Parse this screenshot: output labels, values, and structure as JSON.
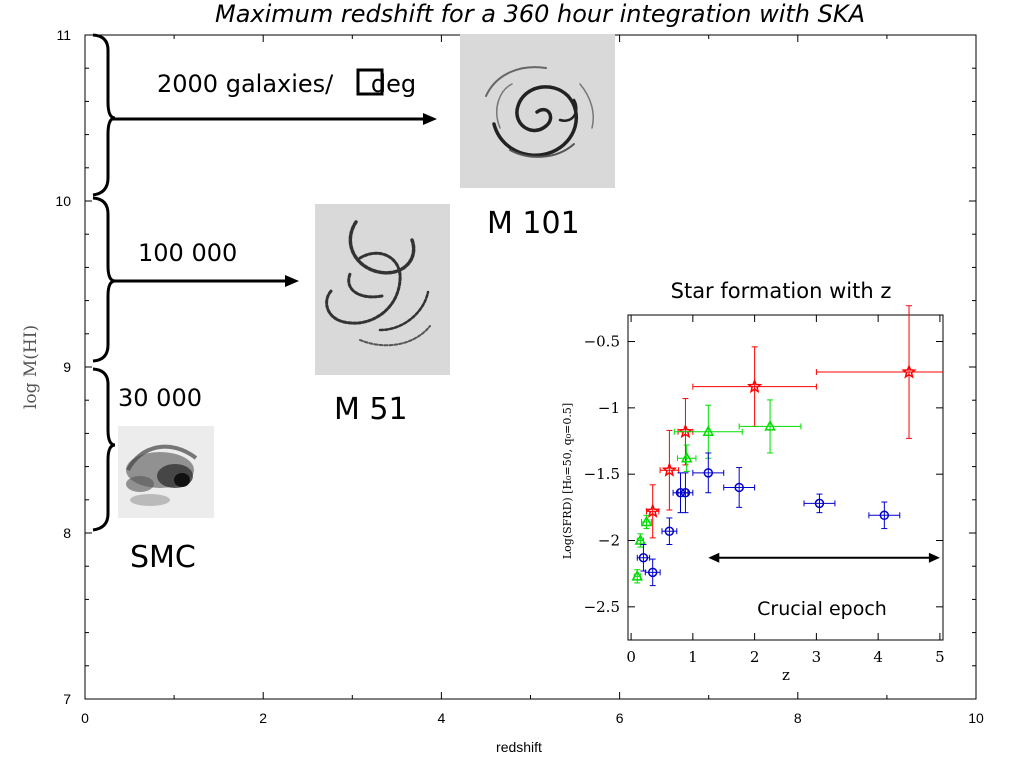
{
  "title": "Maximum redshift for a 360 hour integration with SKA",
  "main_chart": {
    "type": "scatter",
    "xlabel": "redshift",
    "ylabel": "log M(HI)",
    "xlim": [
      0,
      10
    ],
    "ylim": [
      7,
      11
    ],
    "x_ticks": [
      "0",
      "2",
      "4",
      "6",
      "8",
      "10"
    ],
    "y_ticks": [
      "7",
      "8",
      "9",
      "10",
      "11"
    ],
    "grid": false
  },
  "annotations": {
    "band_top_label_pre": "2000 galaxies/",
    "band_top_label_post": " deg",
    "band_mid_label": "100 000",
    "band_low_label": "30 000",
    "galaxy_m101": "M 101",
    "galaxy_m51": "M 51",
    "galaxy_smc": "SMC"
  },
  "chart_data": {
    "type": "scatter",
    "title": "Star formation with z",
    "xlabel": "z",
    "ylabel": "Log(SFRD)  [H₀=50, q₀=0.5]",
    "xlim": [
      -0.05,
      5.05
    ],
    "ylim": [
      -2.75,
      -0.3
    ],
    "x_ticks": [
      "0",
      "1",
      "2",
      "3",
      "4",
      "5"
    ],
    "y_ticks": [
      "-0.5",
      "-1",
      "-1.5",
      "-2",
      "-2.5"
    ],
    "series": [
      {
        "marker": "star",
        "color": "#ff0000",
        "points": [
          {
            "x": 0.35,
            "y": -1.78,
            "xerr": 0.1,
            "yerr": 0.2
          },
          {
            "x": 0.62,
            "y": -1.47,
            "xerr": 0.15,
            "yerr": 0.3
          },
          {
            "x": 0.88,
            "y": -1.18,
            "xerr": 0.12,
            "yerr": 0.25
          },
          {
            "x": 2.0,
            "y": -0.84,
            "xerr": 1.0,
            "yerr": 0.3
          },
          {
            "x": 4.5,
            "y": -0.73,
            "xerr": 1.5,
            "yerr": 0.5
          }
        ]
      },
      {
        "marker": "triangle",
        "color": "#00dd00",
        "points": [
          {
            "x": 0.1,
            "y": -2.27,
            "xerr": 0.05,
            "yerr": 0.05
          },
          {
            "x": 0.15,
            "y": -2.0,
            "xerr": 0.05,
            "yerr": 0.05
          },
          {
            "x": 0.25,
            "y": -1.86,
            "xerr": 0.08,
            "yerr": 0.05
          },
          {
            "x": 0.9,
            "y": -1.38,
            "xerr": 0.15,
            "yerr": 0.1
          },
          {
            "x": 1.25,
            "y": -1.18,
            "xerr": 0.55,
            "yerr": 0.2
          },
          {
            "x": 2.25,
            "y": -1.14,
            "xerr": 0.5,
            "yerr": 0.2
          }
        ]
      },
      {
        "marker": "circle",
        "color": "#0000cc",
        "points": [
          {
            "x": 0.2,
            "y": -2.13,
            "xerr": 0.1,
            "yerr": 0.1
          },
          {
            "x": 0.35,
            "y": -2.24,
            "xerr": 0.12,
            "yerr": 0.1
          },
          {
            "x": 0.62,
            "y": -1.93,
            "xerr": 0.12,
            "yerr": 0.1
          },
          {
            "x": 0.8,
            "y": -1.64,
            "xerr": 0.12,
            "yerr": 0.15
          },
          {
            "x": 0.88,
            "y": -1.64,
            "xerr": 0.12,
            "yerr": 0.15
          },
          {
            "x": 1.25,
            "y": -1.49,
            "xerr": 0.25,
            "yerr": 0.15
          },
          {
            "x": 1.75,
            "y": -1.6,
            "xerr": 0.25,
            "yerr": 0.15
          },
          {
            "x": 3.05,
            "y": -1.72,
            "xerr": 0.25,
            "yerr": 0.07
          },
          {
            "x": 4.1,
            "y": -1.81,
            "xerr": 0.25,
            "yerr": 0.1
          }
        ]
      }
    ],
    "annotation": {
      "text": "Crucial epoch",
      "x_from": 1.25,
      "x_to": 5.0,
      "y": -2.13
    }
  },
  "colors": {
    "red_series": "#ff0000",
    "green_series": "#00dd00",
    "blue_series": "#0000cc",
    "image_bg": "#d9d9d9"
  }
}
